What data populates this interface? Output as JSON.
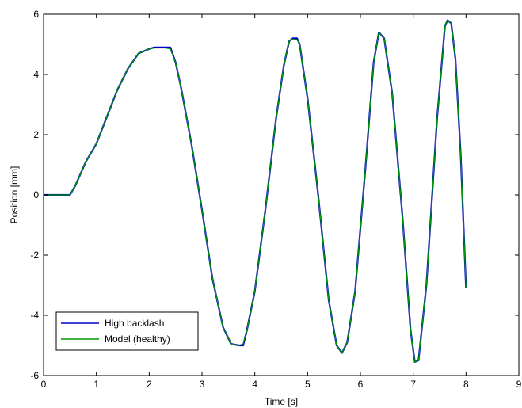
{
  "chart_data": {
    "type": "line",
    "title": "",
    "xlabel": "Time [s]",
    "ylabel": "Position [mm]",
    "xlim": [
      0,
      9
    ],
    "ylim": [
      -6,
      6
    ],
    "xticks": [
      0,
      1,
      2,
      3,
      4,
      5,
      6,
      7,
      8,
      9
    ],
    "yticks": [
      -6,
      -4,
      -2,
      0,
      2,
      4,
      6
    ],
    "xtick_labels": [
      "0",
      "1",
      "2",
      "3",
      "4",
      "5",
      "6",
      "7",
      "8",
      "9"
    ],
    "ytick_labels": [
      "-6",
      "-4",
      "-2",
      "0",
      "2",
      "4",
      "6"
    ],
    "grid": false,
    "legend": {
      "placement": "bottom-left",
      "entries": [
        "High backlash",
        "Model (healthy)"
      ]
    },
    "series": [
      {
        "name": "High backlash",
        "color": "#0000cc",
        "x": [
          0,
          0.5,
          0.6,
          0.8,
          1.0,
          1.2,
          1.4,
          1.6,
          1.8,
          2.0,
          2.1,
          2.2,
          2.3,
          2.4,
          2.5,
          2.6,
          2.8,
          3.0,
          3.2,
          3.4,
          3.55,
          3.7,
          3.78,
          3.85,
          4.0,
          4.2,
          4.4,
          4.55,
          4.65,
          4.72,
          4.8,
          4.85,
          5.0,
          5.2,
          5.4,
          5.55,
          5.65,
          5.75,
          5.9,
          6.1,
          6.25,
          6.35,
          6.45,
          6.6,
          6.8,
          6.95,
          7.03,
          7.1,
          7.25,
          7.45,
          7.6,
          7.65,
          7.72,
          7.8,
          7.9,
          8.0
        ],
        "y": [
          0,
          0,
          0.3,
          1.1,
          1.7,
          2.6,
          3.5,
          4.2,
          4.7,
          4.85,
          4.9,
          4.9,
          4.9,
          4.9,
          4.4,
          3.6,
          1.7,
          -0.5,
          -2.8,
          -4.4,
          -4.95,
          -5.0,
          -5.0,
          -4.5,
          -3.2,
          -0.5,
          2.5,
          4.3,
          5.1,
          5.2,
          5.2,
          5.0,
          3.2,
          0.0,
          -3.5,
          -5.0,
          -5.25,
          -4.9,
          -3.2,
          1.0,
          4.4,
          5.4,
          5.2,
          3.4,
          -0.8,
          -4.5,
          -5.55,
          -5.5,
          -3.0,
          2.5,
          5.6,
          5.8,
          5.7,
          4.5,
          1.3,
          -3.1
        ]
      },
      {
        "name": "Model (healthy)",
        "color": "#009900",
        "x": [
          0,
          0.5,
          0.6,
          0.8,
          1.0,
          1.2,
          1.4,
          1.6,
          1.8,
          2.0,
          2.1,
          2.2,
          2.3,
          2.4,
          2.5,
          2.6,
          2.8,
          3.0,
          3.2,
          3.4,
          3.55,
          3.7,
          3.78,
          3.85,
          4.0,
          4.2,
          4.4,
          4.55,
          4.65,
          4.72,
          4.8,
          4.85,
          5.0,
          5.2,
          5.4,
          5.55,
          5.65,
          5.75,
          5.9,
          6.1,
          6.25,
          6.35,
          6.45,
          6.6,
          6.8,
          6.95,
          7.03,
          7.1,
          7.25,
          7.45,
          7.6,
          7.65,
          7.72,
          7.8,
          7.9,
          8.0
        ],
        "y": [
          0,
          0,
          0.3,
          1.1,
          1.7,
          2.6,
          3.5,
          4.2,
          4.7,
          4.85,
          4.88,
          4.88,
          4.88,
          4.85,
          4.4,
          3.6,
          1.7,
          -0.5,
          -2.8,
          -4.4,
          -4.95,
          -5.0,
          -4.95,
          -4.5,
          -3.2,
          -0.5,
          2.5,
          4.3,
          5.1,
          5.18,
          5.15,
          5.0,
          3.2,
          0.0,
          -3.5,
          -5.0,
          -5.25,
          -4.9,
          -3.2,
          1.0,
          4.4,
          5.4,
          5.2,
          3.4,
          -0.8,
          -4.5,
          -5.55,
          -5.5,
          -3.0,
          2.5,
          5.6,
          5.8,
          5.7,
          4.5,
          1.3,
          -3.1
        ]
      }
    ]
  }
}
